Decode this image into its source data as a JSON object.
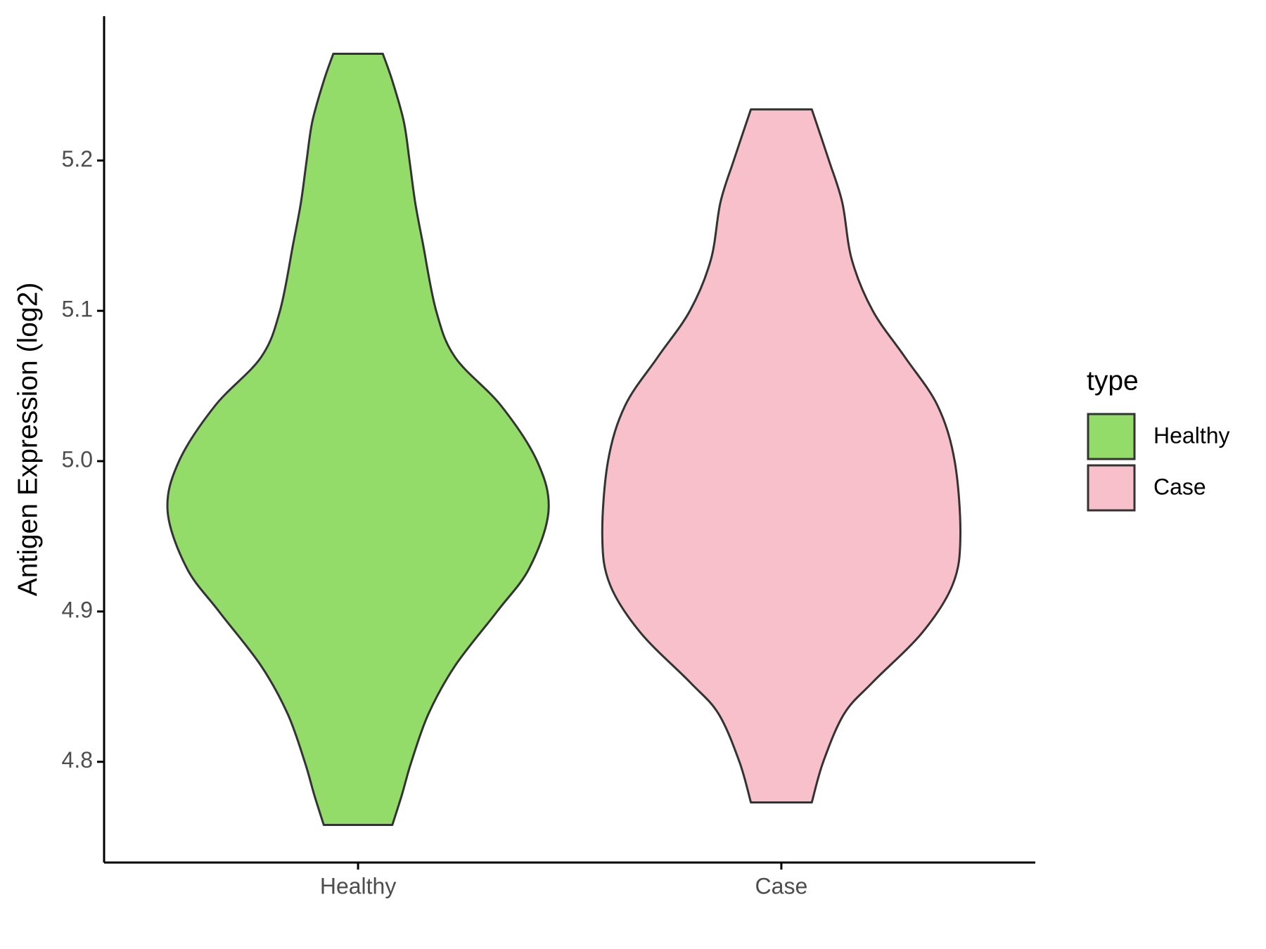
{
  "chart_data": {
    "type": "violin",
    "y_label": "Antigen Expression (log2)",
    "categories": [
      "Healthy",
      "Case"
    ],
    "legend_title": "type",
    "series": [
      {
        "name": "Healthy",
        "color": "#93dc6a",
        "y": [
          5.271,
          5.253,
          5.226,
          5.2,
          5.172,
          5.145,
          5.1,
          5.069,
          5.037,
          5.0,
          4.967,
          4.929,
          4.9,
          4.864,
          4.832,
          4.8,
          4.778,
          4.758
        ],
        "density": [
          0.13,
          0.18,
          0.24,
          0.27,
          0.3,
          0.34,
          0.41,
          0.51,
          0.75,
          0.94,
          1.0,
          0.9,
          0.73,
          0.51,
          0.37,
          0.28,
          0.23,
          0.18
        ]
      },
      {
        "name": "Case",
        "color": "#f7c0cb",
        "y": [
          5.234,
          5.2,
          5.172,
          5.134,
          5.1,
          5.069,
          5.037,
          5.0,
          4.95,
          4.918,
          4.886,
          4.853,
          4.832,
          4.8,
          4.773
        ],
        "density": [
          0.16,
          0.25,
          0.32,
          0.37,
          0.48,
          0.65,
          0.82,
          0.91,
          0.94,
          0.9,
          0.74,
          0.48,
          0.33,
          0.22,
          0.16
        ]
      }
    ],
    "ylim": [
      4.733,
      5.296
    ],
    "yticks": [
      4.8,
      4.9,
      {
        "value": 5,
        "label": "5.0"
      },
      5.1,
      5.2
    ]
  }
}
